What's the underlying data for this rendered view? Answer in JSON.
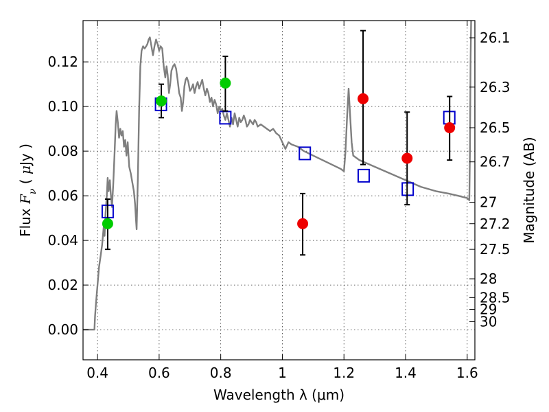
{
  "chart_data": {
    "type": "scatter",
    "xlabel": "Wavelength  λ (μm)",
    "ylabel": "Flux  F_ν  ( μJy )",
    "ylabel_right": "Magnitude (AB)",
    "xlim": [
      0.353,
      1.625
    ],
    "ylim": [
      -0.0135,
      0.1385
    ],
    "x_ticks": [
      0.4,
      0.6,
      0.8,
      1.0,
      1.2,
      1.4,
      1.6
    ],
    "x_tick_labels": [
      "0.4",
      "0.6",
      "0.8",
      "1",
      "1.2",
      "1.4",
      "1.6"
    ],
    "y_ticks": [
      0.0,
      0.02,
      0.04,
      0.06,
      0.08,
      0.1,
      0.12
    ],
    "y_tick_labels": [
      "0.00",
      "0.02",
      "0.04",
      "0.06",
      "0.08",
      "0.10",
      "0.12"
    ],
    "right_ticks": [
      {
        "label": "26.1",
        "flux": 0.1308
      },
      {
        "label": "26.3",
        "flux": 0.1087
      },
      {
        "label": "26.5",
        "flux": 0.0905
      },
      {
        "label": "26.7",
        "flux": 0.0752
      },
      {
        "label": "27",
        "flux": 0.0571
      },
      {
        "label": "27.2",
        "flux": 0.0475
      },
      {
        "label": "27.5",
        "flux": 0.036
      },
      {
        "label": "28",
        "flux": 0.0228
      },
      {
        "label": "28.5",
        "flux": 0.0144
      },
      {
        "label": "29",
        "flux": 0.0091
      },
      {
        "label": "30",
        "flux": 0.0036
      }
    ],
    "grid": true,
    "series": [
      {
        "kind": "line",
        "color": "#7f7f7f",
        "points": [
          [
            0.353,
            0.0
          ],
          [
            0.39,
            0.0
          ],
          [
            0.392,
            0.006
          ],
          [
            0.395,
            0.012
          ],
          [
            0.4,
            0.02
          ],
          [
            0.405,
            0.028
          ],
          [
            0.41,
            0.033
          ],
          [
            0.415,
            0.038
          ],
          [
            0.42,
            0.046
          ],
          [
            0.423,
            0.042
          ],
          [
            0.426,
            0.052
          ],
          [
            0.43,
            0.06
          ],
          [
            0.433,
            0.068
          ],
          [
            0.436,
            0.062
          ],
          [
            0.44,
            0.067
          ],
          [
            0.443,
            0.061
          ],
          [
            0.447,
            0.055
          ],
          [
            0.451,
            0.065
          ],
          [
            0.455,
            0.078
          ],
          [
            0.459,
            0.092
          ],
          [
            0.462,
            0.098
          ],
          [
            0.466,
            0.093
          ],
          [
            0.47,
            0.086
          ],
          [
            0.474,
            0.09
          ],
          [
            0.478,
            0.087
          ],
          [
            0.482,
            0.089
          ],
          [
            0.486,
            0.082
          ],
          [
            0.49,
            0.085
          ],
          [
            0.494,
            0.078
          ],
          [
            0.498,
            0.084
          ],
          [
            0.503,
            0.073
          ],
          [
            0.508,
            0.07
          ],
          [
            0.513,
            0.066
          ],
          [
            0.518,
            0.062
          ],
          [
            0.522,
            0.056
          ],
          [
            0.525,
            0.049
          ],
          [
            0.527,
            0.045
          ],
          [
            0.531,
            0.068
          ],
          [
            0.535,
            0.098
          ],
          [
            0.539,
            0.118
          ],
          [
            0.543,
            0.125
          ],
          [
            0.548,
            0.127
          ],
          [
            0.553,
            0.126
          ],
          [
            0.558,
            0.127
          ],
          [
            0.562,
            0.128
          ],
          [
            0.566,
            0.13
          ],
          [
            0.57,
            0.131
          ],
          [
            0.575,
            0.127
          ],
          [
            0.58,
            0.123
          ],
          [
            0.585,
            0.127
          ],
          [
            0.59,
            0.13
          ],
          [
            0.595,
            0.128
          ],
          [
            0.6,
            0.125
          ],
          [
            0.605,
            0.127
          ],
          [
            0.61,
            0.126
          ],
          [
            0.615,
            0.118
          ],
          [
            0.62,
            0.113
          ],
          [
            0.624,
            0.118
          ],
          [
            0.628,
            0.114
          ],
          [
            0.632,
            0.106
          ],
          [
            0.636,
            0.11
          ],
          [
            0.64,
            0.116
          ],
          [
            0.645,
            0.118
          ],
          [
            0.65,
            0.119
          ],
          [
            0.655,
            0.117
          ],
          [
            0.66,
            0.112
          ],
          [
            0.665,
            0.106
          ],
          [
            0.67,
            0.104
          ],
          [
            0.674,
            0.098
          ],
          [
            0.678,
            0.102
          ],
          [
            0.682,
            0.109
          ],
          [
            0.686,
            0.112
          ],
          [
            0.69,
            0.113
          ],
          [
            0.695,
            0.111
          ],
          [
            0.7,
            0.107
          ],
          [
            0.705,
            0.108
          ],
          [
            0.71,
            0.11
          ],
          [
            0.715,
            0.106
          ],
          [
            0.72,
            0.109
          ],
          [
            0.725,
            0.111
          ],
          [
            0.73,
            0.108
          ],
          [
            0.735,
            0.11
          ],
          [
            0.74,
            0.112
          ],
          [
            0.745,
            0.108
          ],
          [
            0.75,
            0.105
          ],
          [
            0.755,
            0.108
          ],
          [
            0.76,
            0.106
          ],
          [
            0.765,
            0.102
          ],
          [
            0.77,
            0.104
          ],
          [
            0.775,
            0.1
          ],
          [
            0.78,
            0.103
          ],
          [
            0.785,
            0.101
          ],
          [
            0.79,
            0.097
          ],
          [
            0.795,
            0.1
          ],
          [
            0.8,
            0.098
          ],
          [
            0.805,
            0.099
          ],
          [
            0.81,
            0.096
          ],
          [
            0.815,
            0.094
          ],
          [
            0.82,
            0.097
          ],
          [
            0.825,
            0.094
          ],
          [
            0.83,
            0.091
          ],
          [
            0.835,
            0.095
          ],
          [
            0.84,
            0.092
          ],
          [
            0.845,
            0.097
          ],
          [
            0.85,
            0.094
          ],
          [
            0.855,
            0.091
          ],
          [
            0.86,
            0.095
          ],
          [
            0.865,
            0.093
          ],
          [
            0.87,
            0.094
          ],
          [
            0.875,
            0.096
          ],
          [
            0.88,
            0.094
          ],
          [
            0.885,
            0.091
          ],
          [
            0.89,
            0.092
          ],
          [
            0.895,
            0.094
          ],
          [
            0.9,
            0.093
          ],
          [
            0.905,
            0.092
          ],
          [
            0.91,
            0.094
          ],
          [
            0.915,
            0.093
          ],
          [
            0.92,
            0.091
          ],
          [
            0.93,
            0.092
          ],
          [
            0.94,
            0.091
          ],
          [
            0.95,
            0.09
          ],
          [
            0.96,
            0.089
          ],
          [
            0.97,
            0.09
          ],
          [
            0.98,
            0.088
          ],
          [
            0.99,
            0.087
          ],
          [
            1.0,
            0.084
          ],
          [
            1.01,
            0.081
          ],
          [
            1.02,
            0.084
          ],
          [
            1.03,
            0.083
          ],
          [
            1.05,
            0.082
          ],
          [
            1.07,
            0.08
          ],
          [
            1.1,
            0.078
          ],
          [
            1.13,
            0.076
          ],
          [
            1.16,
            0.074
          ],
          [
            1.19,
            0.072
          ],
          [
            1.2,
            0.071
          ],
          [
            1.205,
            0.08
          ],
          [
            1.21,
            0.095
          ],
          [
            1.215,
            0.108
          ],
          [
            1.22,
            0.096
          ],
          [
            1.225,
            0.084
          ],
          [
            1.23,
            0.078
          ],
          [
            1.25,
            0.076
          ],
          [
            1.3,
            0.073
          ],
          [
            1.35,
            0.07
          ],
          [
            1.4,
            0.067
          ],
          [
            1.45,
            0.064
          ],
          [
            1.5,
            0.062
          ],
          [
            1.54,
            0.061
          ],
          [
            1.57,
            0.06
          ],
          [
            1.6,
            0.059
          ],
          [
            1.607,
            0.058
          ],
          [
            1.609,
            0.08
          ],
          [
            1.611,
            0.12
          ],
          [
            1.613,
            0.14
          ]
        ]
      },
      {
        "kind": "model_squares",
        "color": "#0000cc",
        "points": [
          [
            0.433,
            0.053
          ],
          [
            0.606,
            0.101
          ],
          [
            0.815,
            0.095
          ],
          [
            1.073,
            0.079
          ],
          [
            1.264,
            0.069
          ],
          [
            1.407,
            0.063
          ],
          [
            1.542,
            0.095
          ]
        ]
      },
      {
        "kind": "markers",
        "color": "#00cc00",
        "points": [
          {
            "x": 0.433,
            "y": 0.0475,
            "yerr_lo": 0.0115,
            "yerr_hi": 0.011
          },
          {
            "x": 0.607,
            "y": 0.1025,
            "yerr_lo": 0.0075,
            "yerr_hi": 0.0075
          },
          {
            "x": 0.815,
            "y": 0.1105,
            "yerr_lo": 0.0125,
            "yerr_hi": 0.012
          }
        ]
      },
      {
        "kind": "markers",
        "color": "#ee0000",
        "points": [
          {
            "x": 1.066,
            "y": 0.0475,
            "yerr_lo": 0.014,
            "yerr_hi": 0.0135
          },
          {
            "x": 1.262,
            "y": 0.1035,
            "yerr_lo": 0.0295,
            "yerr_hi": 0.0305
          },
          {
            "x": 1.405,
            "y": 0.0768,
            "yerr_lo": 0.0208,
            "yerr_hi": 0.0207
          },
          {
            "x": 1.543,
            "y": 0.0905,
            "yerr_lo": 0.0145,
            "yerr_hi": 0.014
          }
        ]
      }
    ]
  }
}
